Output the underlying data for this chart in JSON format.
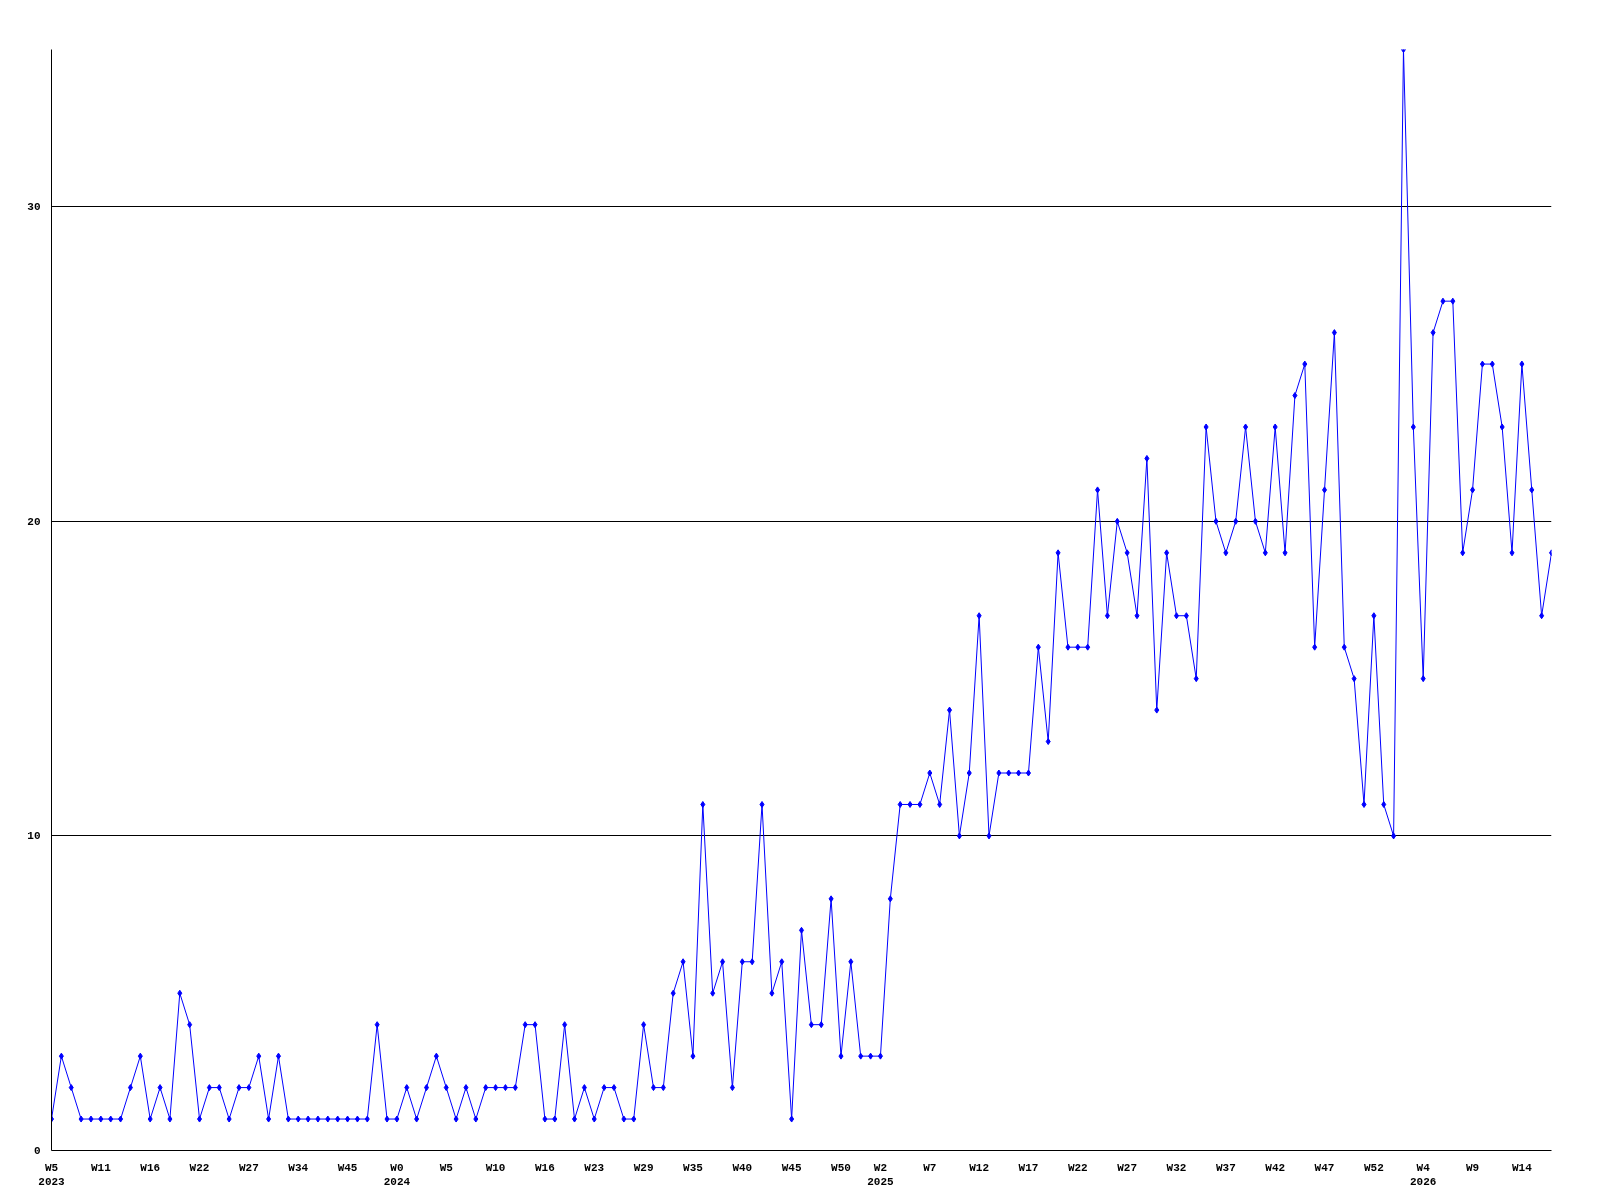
{
  "chart_data": {
    "type": "line",
    "categories": [
      "W5\n2023",
      null,
      null,
      null,
      null,
      "W11",
      null,
      null,
      null,
      null,
      "W16",
      null,
      null,
      null,
      null,
      "W22",
      null,
      null,
      null,
      null,
      "W27",
      null,
      null,
      null,
      null,
      "W34",
      null,
      null,
      null,
      null,
      "W45",
      null,
      null,
      null,
      null,
      "W0\n2024",
      null,
      null,
      null,
      null,
      "W5",
      null,
      null,
      null,
      null,
      "W10",
      null,
      null,
      null,
      null,
      "W16",
      null,
      null,
      null,
      null,
      "W23",
      null,
      null,
      null,
      null,
      "W29",
      null,
      null,
      null,
      null,
      "W35",
      null,
      null,
      null,
      null,
      "W40",
      null,
      null,
      null,
      null,
      "W45",
      null,
      null,
      null,
      null,
      "W50",
      null,
      null,
      null,
      "W2\n2025",
      null,
      null,
      null,
      null,
      "W7",
      null,
      null,
      null,
      null,
      "W12",
      null,
      null,
      null,
      null,
      "W17",
      null,
      null,
      null,
      null,
      "W22",
      null,
      null,
      null,
      null,
      "W27",
      null,
      null,
      null,
      null,
      "W32",
      null,
      null,
      null,
      null,
      "W37",
      null,
      null,
      null,
      null,
      "W42",
      null,
      null,
      null,
      null,
      "W47",
      null,
      null,
      null,
      null,
      "W52",
      null,
      null,
      null,
      null,
      "W4\n2026",
      null,
      null,
      null,
      null,
      "W9",
      null,
      null,
      null,
      null,
      "W14",
      null,
      null,
      null
    ],
    "series": [
      {
        "color": "#0000ff",
        "values": [
          1,
          3,
          2,
          1,
          1,
          1,
          1,
          1,
          2,
          3,
          1,
          2,
          1,
          5,
          4,
          1,
          2,
          2,
          1,
          2,
          2,
          3,
          1,
          3,
          1,
          1,
          1,
          1,
          1,
          1,
          1,
          1,
          1,
          4,
          1,
          1,
          2,
          1,
          2,
          3,
          2,
          1,
          2,
          1,
          2,
          2,
          2,
          2,
          4,
          4,
          1,
          1,
          4,
          1,
          2,
          1,
          2,
          2,
          1,
          1,
          4,
          2,
          2,
          5,
          6,
          3,
          11,
          5,
          6,
          2,
          6,
          6,
          11,
          5,
          6,
          1,
          7,
          4,
          4,
          8,
          3,
          6,
          3,
          3,
          3,
          8,
          11,
          11,
          11,
          12,
          11,
          14,
          10,
          12,
          17,
          10,
          12,
          12,
          12,
          12,
          16,
          13,
          19,
          16,
          16,
          16,
          21,
          17,
          20,
          19,
          17,
          22,
          14,
          19,
          17,
          17,
          15,
          23,
          20,
          19,
          20,
          23,
          20,
          19,
          23,
          19,
          24,
          25,
          16,
          21,
          26,
          16,
          15,
          11,
          17,
          11,
          10,
          35,
          23,
          15,
          26,
          27,
          27,
          19,
          21,
          25,
          25,
          23,
          19,
          25,
          21,
          17,
          19
        ]
      }
    ],
    "ylim": [
      0,
      35
    ],
    "yticks": [
      0,
      10,
      20,
      30
    ],
    "grid": "y",
    "marker": "diamond",
    "line_style": "solid"
  }
}
